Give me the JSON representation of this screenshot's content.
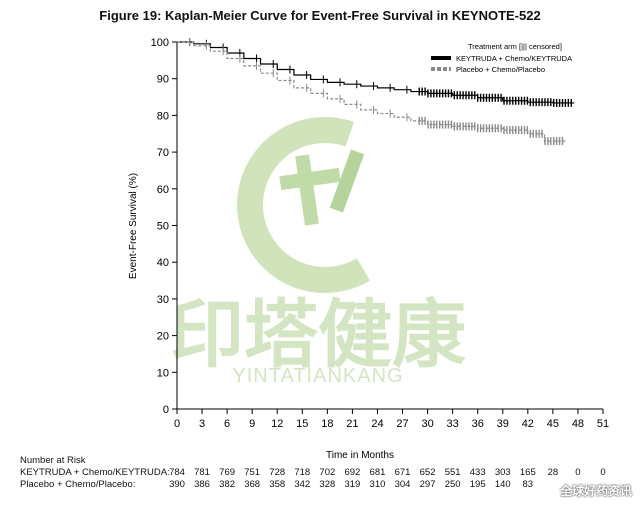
{
  "title": "Figure 19: Kaplan-Meier Curve for Event-Free Survival in KEYNOTE-522",
  "watermark": {
    "text_cn": "印塔健康",
    "text_en": "YINTATIANKANG",
    "corner_text": "全球好药资讯",
    "color": "#bcd6a0"
  },
  "chart_data": {
    "type": "line",
    "title": "Figure 19: Kaplan-Meier Curve for Event-Free Survival in KEYNOTE-522",
    "xlabel": "Time in Months",
    "ylabel": "Event-Free Survival (%)",
    "xlim": [
      0,
      51
    ],
    "ylim": [
      0,
      100
    ],
    "x_ticks": [
      0,
      3,
      6,
      9,
      12,
      15,
      18,
      21,
      24,
      27,
      30,
      33,
      36,
      39,
      42,
      45,
      48,
      51
    ],
    "y_ticks": [
      0,
      10,
      20,
      30,
      40,
      50,
      60,
      70,
      80,
      90,
      100
    ],
    "legend_title": "Treatment arm [||| censored]",
    "legend_position": "top-right",
    "grid": false,
    "series": [
      {
        "name": "KEYTRUDA + Chemo/KEYTRUDA",
        "color": "#000000",
        "style": "solid",
        "x": [
          0,
          2,
          4,
          6,
          8,
          10,
          12,
          14,
          16,
          18,
          20,
          22,
          24,
          26,
          28,
          30,
          33,
          36,
          39,
          42,
          45,
          47.5
        ],
        "y": [
          100,
          99.5,
          98.5,
          97,
          95.5,
          94,
          92.5,
          91,
          89.8,
          89,
          88.5,
          88,
          87.5,
          87,
          86.5,
          86,
          85.5,
          84.8,
          84,
          83.6,
          83.4,
          83.3
        ]
      },
      {
        "name": "Placebo + Chemo/Placebo",
        "color": "#8a8a8a",
        "style": "dashed",
        "x": [
          0,
          2,
          4,
          6,
          8,
          10,
          12,
          14,
          16,
          18,
          20,
          22,
          24,
          26,
          28,
          30,
          33,
          36,
          39,
          42,
          44,
          46.5
        ],
        "y": [
          100,
          99,
          97.5,
          95.5,
          93.5,
          91.5,
          89.5,
          87.5,
          86,
          84.5,
          83,
          81.5,
          80.5,
          79.5,
          78.5,
          77.5,
          77,
          76.5,
          76,
          75,
          73,
          73
        ]
      }
    ],
    "risk_table": {
      "header": "Number at Risk",
      "times": [
        0,
        3,
        6,
        9,
        12,
        15,
        18,
        21,
        24,
        27,
        30,
        33,
        36,
        39,
        42,
        45,
        48,
        51
      ],
      "rows": [
        {
          "label": "KEYTRUDA + Chemo/KEYTRUDA:",
          "values": [
            "784",
            "781",
            "769",
            "751",
            "728",
            "718",
            "702",
            "692",
            "681",
            "671",
            "652",
            "551",
            "433",
            "303",
            "165",
            "28",
            "0",
            "0"
          ]
        },
        {
          "label": "Placebo + Chemo/Placebo:",
          "values": [
            "390",
            "386",
            "382",
            "368",
            "358",
            "342",
            "328",
            "319",
            "310",
            "304",
            "297",
            "250",
            "195",
            "140",
            "83",
            "",
            "",
            ""
          ]
        }
      ]
    }
  }
}
